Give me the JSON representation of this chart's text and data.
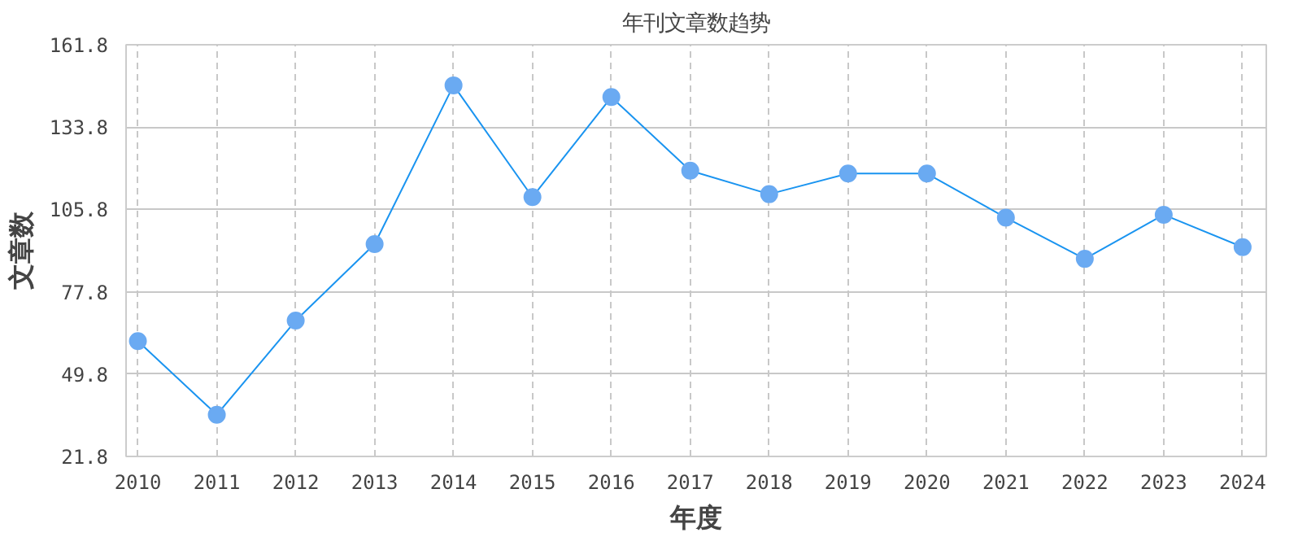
{
  "chart_data": {
    "type": "line",
    "title": "年刊文章数趋势",
    "xlabel": "年度",
    "ylabel": "文章数",
    "categories": [
      "2010",
      "2011",
      "2012",
      "2013",
      "2014",
      "2015",
      "2016",
      "2017",
      "2018",
      "2019",
      "2020",
      "2021",
      "2022",
      "2023",
      "2024"
    ],
    "series": [
      {
        "color": "#1a94f0",
        "values": [
          61,
          36,
          68,
          94,
          148,
          110,
          144,
          119,
          111,
          118,
          118,
          103,
          89,
          104,
          93
        ]
      }
    ],
    "ylim": [
      21.8,
      161.8
    ],
    "yticks": [
      21.8,
      49.8,
      77.8,
      105.8,
      133.8,
      161.8
    ],
    "grid": true,
    "marker": "circle",
    "line_style": "solid"
  }
}
